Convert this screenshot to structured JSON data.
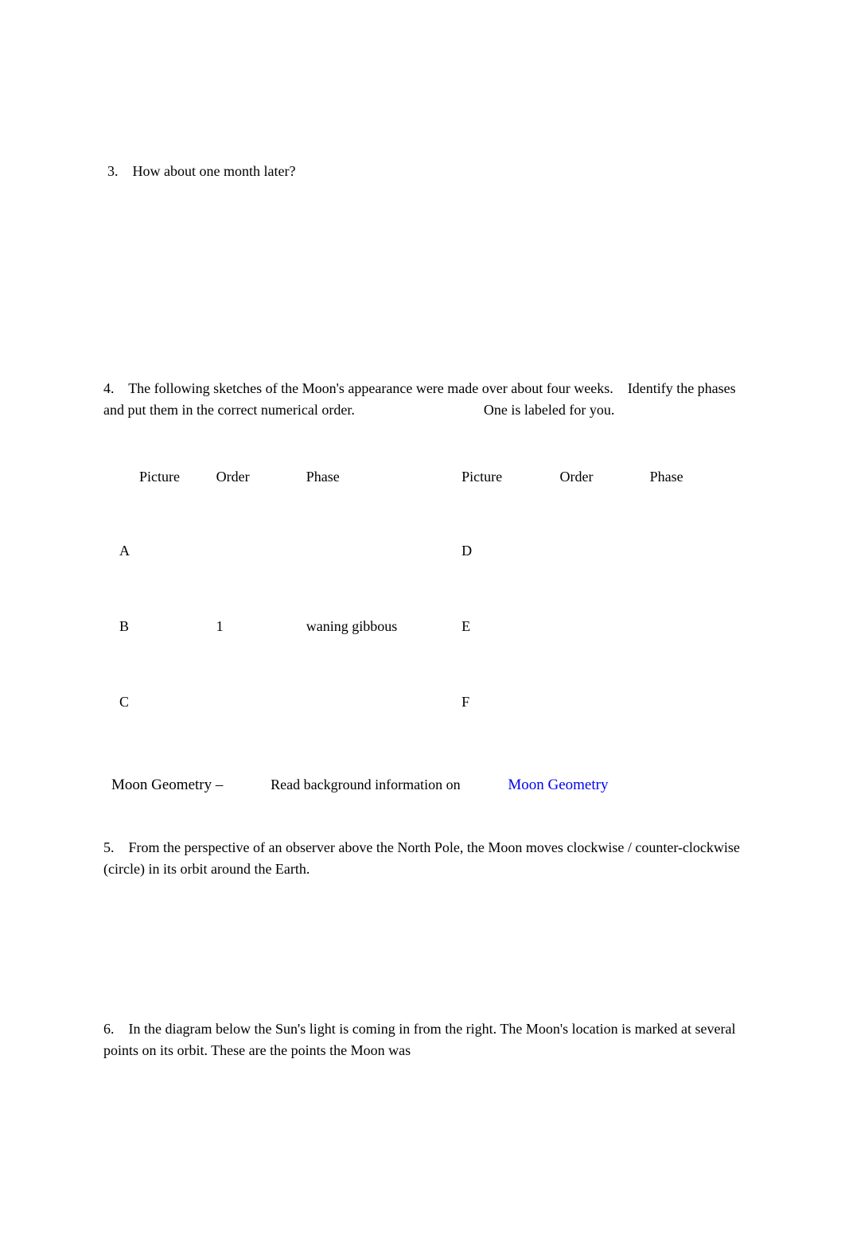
{
  "q3": {
    "number": "3.",
    "text": "How about one month later?"
  },
  "q4": {
    "number": "4.",
    "text": "The following sketches of the Moon's appearance were made over about four weeks.    Identify the phases and put them in the correct numerical order.                                    One is labeled for you."
  },
  "table": {
    "headers": {
      "pic_l": "Picture",
      "ord_l": "Order",
      "pha_l": "Phase",
      "pic_r": "Picture",
      "ord_r": "Order",
      "pha_r": "Phase"
    },
    "rows": [
      {
        "pl": "A",
        "ol": "",
        "phl": "",
        "pr": "D",
        "or_": "",
        "phr": ""
      },
      {
        "pl": "B",
        "ol": "1",
        "phl": "waning gibbous",
        "pr": "E",
        "or_": "",
        "phr": ""
      },
      {
        "pl": "C",
        "ol": "",
        "phl": "",
        "pr": "F",
        "or_": "",
        "phr": ""
      }
    ]
  },
  "moon_geom": {
    "title": "Moon Geometry –",
    "read": "Read background information on",
    "link": "Moon Geometry"
  },
  "q5": {
    "number": "5.",
    "text": "From the perspective of an observer above the North Pole, the Moon moves clockwise / counter-clockwise (circle) in its orbit around the Earth."
  },
  "q6": {
    "number": "6.",
    "text": "In the diagram below the Sun's light is coming in from the right. The Moon's location is marked at several points on its orbit. These are the points the Moon was"
  }
}
